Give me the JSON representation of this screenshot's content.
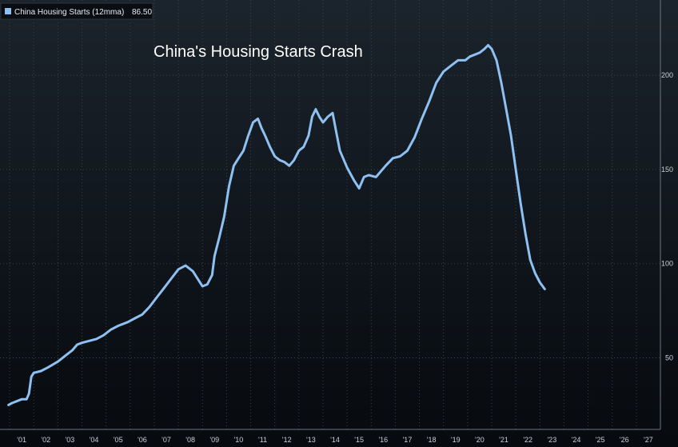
{
  "chart_data": {
    "type": "line",
    "title": "China's Housing Starts Crash",
    "legend": {
      "label": "China Housing Starts (12mma)",
      "last_value": "86.50",
      "placement": "top-left"
    },
    "xlabel": "",
    "ylabel": "",
    "x_tick_labels": [
      "'01",
      "'02",
      "'03",
      "'04",
      "'05",
      "'06",
      "'07",
      "'08",
      "'09",
      "'10",
      "'11",
      "'12",
      "'13",
      "'14",
      "'15",
      "'16",
      "'17",
      "'18",
      "'19",
      "'20",
      "'21",
      "'22",
      "'23",
      "'24",
      "'25",
      "'26",
      "'27"
    ],
    "y_ticks": [
      50,
      100,
      150,
      200
    ],
    "ylim": [
      12,
      240
    ],
    "xlim": [
      2000.6,
      2028.0
    ],
    "grid": true,
    "series": [
      {
        "name": "China Housing Starts (12mma)",
        "color": "#8ec0f2",
        "x": [
          2000.95,
          2001.1,
          2001.3,
          2001.5,
          2001.7,
          2001.8,
          2001.9,
          2002.0,
          2002.3,
          2002.6,
          2003.0,
          2003.3,
          2003.6,
          2003.8,
          2004.0,
          2004.3,
          2004.6,
          2004.9,
          2005.2,
          2005.5,
          2005.9,
          2006.2,
          2006.5,
          2006.8,
          2007.1,
          2007.4,
          2007.7,
          2008.0,
          2008.3,
          2008.6,
          2008.8,
          2009.0,
          2009.2,
          2009.4,
          2009.5,
          2009.7,
          2009.9,
          2010.1,
          2010.3,
          2010.5,
          2010.7,
          2010.9,
          2011.1,
          2011.3,
          2011.45,
          2011.6,
          2011.8,
          2012.0,
          2012.2,
          2012.4,
          2012.6,
          2012.8,
          2013.0,
          2013.2,
          2013.4,
          2013.55,
          2013.7,
          2013.85,
          2014.0,
          2014.2,
          2014.4,
          2014.55,
          2014.7,
          2015.0,
          2015.3,
          2015.5,
          2015.7,
          2015.9,
          2016.2,
          2016.4,
          2016.6,
          2016.9,
          2017.2,
          2017.5,
          2017.8,
          2018.1,
          2018.4,
          2018.7,
          2019.0,
          2019.3,
          2019.6,
          2019.9,
          2020.1,
          2020.3,
          2020.5,
          2020.7,
          2020.85,
          2021.0,
          2021.2,
          2021.4,
          2021.6,
          2021.8,
          2022.0,
          2022.2,
          2022.4,
          2022.6,
          2022.8,
          2023.0,
          2023.2
        ],
        "values": [
          25,
          26,
          27,
          28,
          28,
          31,
          40,
          42,
          43,
          45,
          48,
          51,
          54,
          57,
          58,
          59,
          60,
          62,
          65,
          67,
          69,
          71,
          73,
          77,
          82,
          87,
          92,
          97,
          99,
          96,
          92,
          88,
          89,
          94,
          104,
          114,
          125,
          141,
          152,
          156,
          160,
          168,
          175,
          177,
          172,
          168,
          162,
          157,
          155,
          154,
          152,
          155,
          160,
          162,
          168,
          178,
          182,
          178,
          175,
          178,
          180,
          170,
          160,
          151,
          144,
          140,
          146,
          147,
          146,
          149,
          152,
          156,
          157,
          160,
          167,
          177,
          186,
          196,
          202,
          205,
          208,
          208,
          210,
          211,
          212,
          214,
          216,
          214,
          208,
          196,
          182,
          168,
          150,
          132,
          116,
          102,
          95,
          90,
          86.5
        ]
      }
    ]
  }
}
